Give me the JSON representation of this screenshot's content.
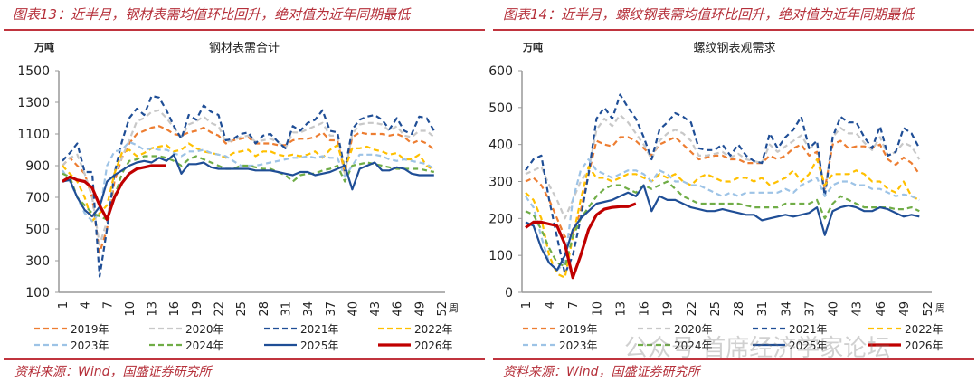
{
  "figures": [
    {
      "caption": "图表13：近半月，钢材表需均值环比回升，绝对值为近年同期最低",
      "source": "资料来源：Wind，国盛证券研究所"
    },
    {
      "caption": "图表14：近半月，螺纹钢表需均值环比回升，绝对值为近年同期最低",
      "source": "资料来源：Wind，国盛证券研究所"
    }
  ],
  "watermark": "公众号·首席经济学家论坛",
  "colors": {
    "2019年": "#ed7d31",
    "2020年": "#c8c8c8",
    "2021年": "#1f4e96",
    "2022年": "#ffc000",
    "2023年": "#9dc3e6",
    "2024年": "#70ad47",
    "2025年": "#1f4e96",
    "2026年": "#c00000"
  },
  "chart_data": [
    {
      "type": "line",
      "title": "钢材表需合计",
      "ylabel": "万吨",
      "xlabel": "周",
      "ylim": [
        100,
        1500
      ],
      "yticks": [
        100,
        300,
        500,
        700,
        900,
        1100,
        1300,
        1500
      ],
      "xticks": [
        1,
        4,
        7,
        10,
        13,
        16,
        19,
        22,
        25,
        28,
        31,
        34,
        37,
        40,
        43,
        46,
        49,
        52
      ],
      "legend": "bottom",
      "series": [
        {
          "name": "2019年",
          "style": "dashed",
          "values": [
            900,
            950,
            900,
            850,
            700,
            350,
            500,
            800,
            950,
            1040,
            1100,
            1120,
            1140,
            1150,
            1130,
            1100,
            1090,
            1110,
            1120,
            1140,
            1110,
            1090,
            1040,
            1060,
            1070,
            1080,
            1040,
            1040,
            1040,
            1030,
            1030,
            1060,
            1070,
            1070,
            1080,
            1110,
            1060,
            1060,
            850,
            1080,
            1110,
            1100,
            1100,
            1100,
            1090,
            1100,
            1080,
            1040,
            1060,
            1040,
            1000
          ]
        },
        {
          "name": "2020年",
          "style": "dashed",
          "values": [
            900,
            950,
            970,
            850,
            700,
            400,
            550,
            850,
            950,
            1060,
            1180,
            1200,
            1240,
            1250,
            1200,
            1140,
            1080,
            1160,
            1180,
            1210,
            1170,
            1150,
            1050,
            1060,
            1080,
            1090,
            1050,
            1060,
            1070,
            1050,
            1010,
            1110,
            1110,
            1130,
            1150,
            1170,
            1090,
            1090,
            850,
            1100,
            1160,
            1170,
            1170,
            1160,
            1120,
            1150,
            1090,
            1080,
            1120,
            1120,
            1080
          ]
        },
        {
          "name": "2021年",
          "style": "dashed",
          "values": [
            930,
            980,
            1040,
            860,
            860,
            200,
            500,
            850,
            1050,
            1200,
            1260,
            1220,
            1340,
            1330,
            1250,
            1150,
            1070,
            1220,
            1190,
            1280,
            1240,
            1220,
            1060,
            1070,
            1100,
            1110,
            1040,
            1090,
            1100,
            1050,
            1010,
            1150,
            1120,
            1170,
            1190,
            1250,
            1120,
            1110,
            870,
            1130,
            1190,
            1210,
            1220,
            1190,
            1130,
            1200,
            1120,
            1100,
            1210,
            1200,
            1120
          ]
        },
        {
          "name": "2022年",
          "style": "dashed",
          "values": [
            900,
            850,
            800,
            700,
            550,
            600,
            650,
            850,
            980,
            1000,
            960,
            980,
            1010,
            1020,
            1030,
            990,
            1000,
            1040,
            1010,
            990,
            980,
            970,
            950,
            980,
            990,
            1000,
            960,
            990,
            990,
            970,
            960,
            970,
            960,
            970,
            990,
            950,
            1000,
            1030,
            880,
            1010,
            1010,
            1020,
            1000,
            990,
            970,
            980,
            940,
            940,
            970,
            900,
            870
          ]
        },
        {
          "name": "2023年",
          "style": "dashed",
          "values": [
            870,
            800,
            700,
            600,
            550,
            600,
            900,
            990,
            1000,
            1050,
            1030,
            1000,
            1010,
            1000,
            1000,
            980,
            960,
            990,
            990,
            1000,
            980,
            970,
            960,
            930,
            900,
            900,
            900,
            910,
            920,
            930,
            940,
            950,
            950,
            960,
            950,
            960,
            950,
            950,
            830,
            900,
            970,
            970,
            970,
            960,
            940,
            930,
            940,
            930,
            920,
            910,
            880
          ]
        },
        {
          "name": "2024年",
          "style": "dashed",
          "values": [
            850,
            830,
            700,
            650,
            600,
            580,
            560,
            700,
            850,
            930,
            940,
            960,
            960,
            960,
            950,
            930,
            900,
            940,
            960,
            940,
            920,
            900,
            880,
            880,
            900,
            900,
            890,
            880,
            880,
            860,
            840,
            800,
            840,
            850,
            850,
            870,
            880,
            900,
            800,
            900,
            910,
            920,
            910,
            900,
            890,
            880,
            880,
            880,
            880,
            870,
            860
          ]
        },
        {
          "name": "2025年",
          "style": "solid",
          "values": [
            800,
            810,
            700,
            620,
            580,
            640,
            800,
            840,
            870,
            900,
            920,
            930,
            920,
            950,
            930,
            970,
            850,
            910,
            910,
            920,
            890,
            880,
            880,
            880,
            880,
            880,
            870,
            870,
            870,
            860,
            850,
            840,
            860,
            860,
            840,
            850,
            860,
            880,
            900,
            750,
            880,
            900,
            920,
            870,
            870,
            890,
            880,
            850,
            840,
            840,
            840
          ]
        },
        {
          "name": "2026年",
          "style": "thick",
          "values": [
            800,
            830,
            810,
            800,
            760,
            650,
            560,
            700,
            790,
            850,
            880,
            890,
            900,
            900,
            900
          ]
        }
      ]
    },
    {
      "type": "line",
      "title": "螺纹钢表观需求",
      "ylabel": "万吨",
      "xlabel": "周",
      "ylim": [
        0,
        600
      ],
      "yticks": [
        0,
        100,
        200,
        300,
        400,
        500,
        600
      ],
      "xticks": [
        1,
        4,
        7,
        10,
        13,
        16,
        19,
        22,
        25,
        28,
        31,
        34,
        37,
        40,
        43,
        46,
        49,
        52
      ],
      "legend": "bottom",
      "series": [
        {
          "name": "2019年",
          "style": "dashed",
          "values": [
            300,
            310,
            290,
            250,
            200,
            150,
            160,
            220,
            320,
            410,
            400,
            395,
            420,
            420,
            410,
            390,
            370,
            400,
            410,
            420,
            400,
            380,
            360,
            365,
            370,
            370,
            360,
            360,
            350,
            350,
            350,
            370,
            360,
            370,
            390,
            400,
            370,
            380,
            280,
            400,
            410,
            390,
            395,
            395,
            390,
            400,
            360,
            345,
            365,
            350,
            320
          ]
        },
        {
          "name": "2020年",
          "style": "dashed",
          "values": [
            320,
            330,
            340,
            290,
            250,
            200,
            250,
            300,
            330,
            440,
            470,
            450,
            480,
            460,
            430,
            400,
            360,
            410,
            430,
            440,
            430,
            410,
            370,
            370,
            375,
            380,
            365,
            375,
            360,
            355,
            350,
            400,
            380,
            395,
            410,
            425,
            390,
            400,
            270,
            420,
            445,
            430,
            430,
            405,
            385,
            420,
            370,
            380,
            405,
            395,
            360
          ]
        },
        {
          "name": "2021年",
          "style": "dashed",
          "values": [
            330,
            360,
            370,
            250,
            150,
            50,
            100,
            200,
            320,
            470,
            500,
            470,
            535,
            500,
            470,
            420,
            360,
            440,
            460,
            485,
            475,
            460,
            390,
            385,
            385,
            400,
            370,
            400,
            370,
            355,
            350,
            430,
            390,
            420,
            440,
            475,
            390,
            410,
            260,
            420,
            475,
            460,
            460,
            420,
            390,
            450,
            370,
            380,
            445,
            430,
            390
          ]
        },
        {
          "name": "2022年",
          "style": "dashed",
          "values": [
            270,
            250,
            200,
            100,
            50,
            40,
            150,
            250,
            340,
            310,
            310,
            300,
            310,
            320,
            320,
            310,
            300,
            320,
            310,
            320,
            300,
            290,
            310,
            320,
            310,
            300,
            300,
            310,
            310,
            300,
            310,
            290,
            300,
            310,
            330,
            300,
            320,
            360,
            290,
            320,
            320,
            320,
            330,
            320,
            300,
            300,
            280,
            270,
            300,
            260,
            250
          ]
        },
        {
          "name": "2023年",
          "style": "dashed",
          "values": [
            260,
            230,
            150,
            80,
            60,
            80,
            250,
            330,
            360,
            330,
            320,
            310,
            320,
            330,
            330,
            320,
            300,
            330,
            320,
            300,
            300,
            290,
            290,
            280,
            270,
            260,
            270,
            260,
            270,
            270,
            270,
            270,
            270,
            280,
            270,
            290,
            300,
            310,
            260,
            290,
            300,
            300,
            290,
            290,
            280,
            280,
            270,
            260,
            265,
            260,
            250
          ]
        },
        {
          "name": "2024年",
          "style": "dashed",
          "values": [
            220,
            210,
            170,
            120,
            80,
            70,
            150,
            200,
            230,
            260,
            280,
            290,
            290,
            280,
            270,
            290,
            280,
            290,
            300,
            280,
            260,
            250,
            240,
            240,
            240,
            240,
            240,
            240,
            235,
            230,
            230,
            230,
            230,
            240,
            240,
            240,
            240,
            250,
            200,
            240,
            260,
            250,
            240,
            230,
            230,
            230,
            230,
            225,
            225,
            230,
            220
          ]
        },
        {
          "name": "2025年",
          "style": "solid",
          "values": [
            190,
            180,
            120,
            80,
            60,
            100,
            170,
            200,
            220,
            240,
            245,
            250,
            260,
            270,
            260,
            290,
            220,
            260,
            250,
            250,
            240,
            230,
            225,
            220,
            220,
            225,
            220,
            215,
            210,
            210,
            195,
            200,
            205,
            210,
            205,
            210,
            215,
            230,
            155,
            220,
            230,
            235,
            230,
            220,
            220,
            230,
            225,
            215,
            205,
            210,
            205
          ]
        },
        {
          "name": "2026年",
          "style": "thick",
          "values": [
            175,
            190,
            190,
            185,
            180,
            130,
            40,
            100,
            170,
            210,
            225,
            230,
            232,
            232,
            240
          ]
        }
      ]
    }
  ]
}
